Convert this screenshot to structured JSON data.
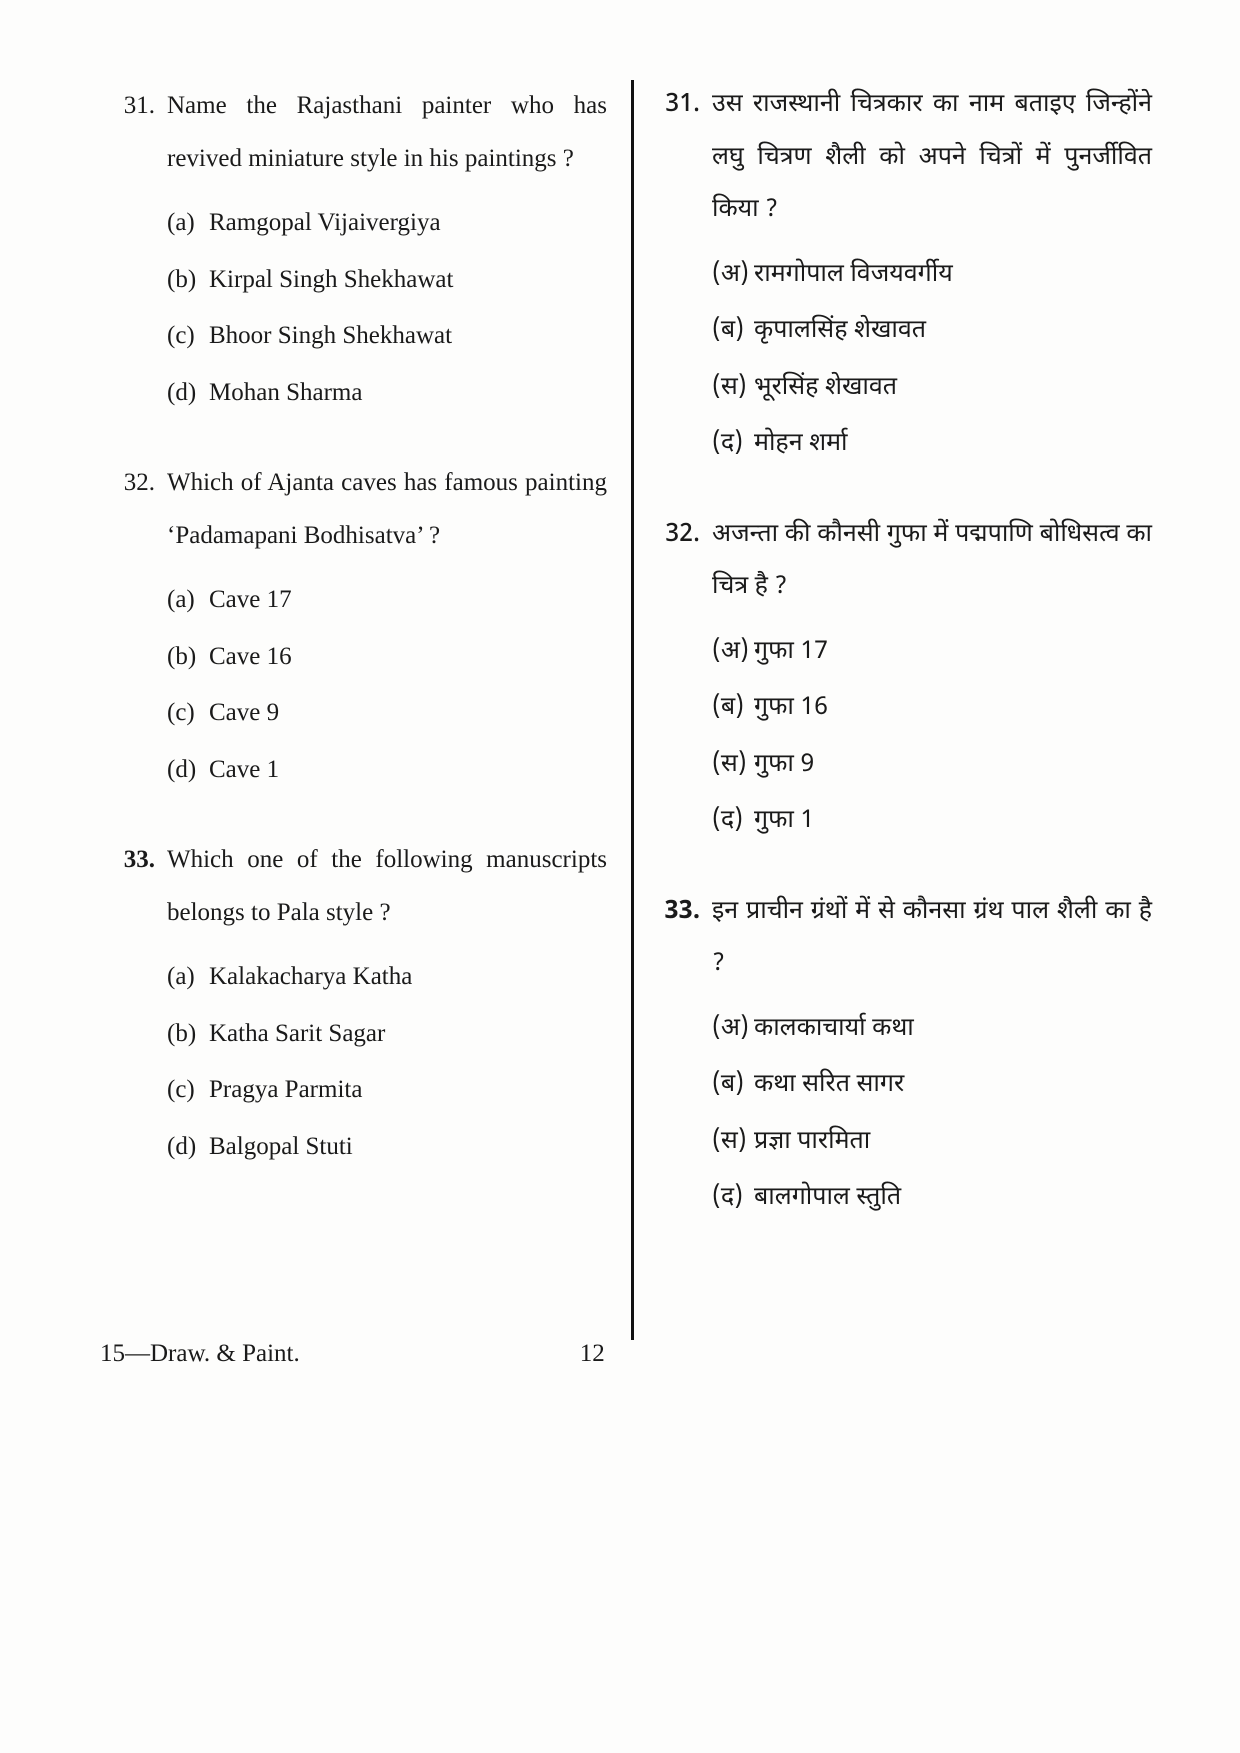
{
  "left": {
    "q31": {
      "num": "31.",
      "text": "Name the Rajasthani painter who has revived miniature style in his paintings ?",
      "opts": [
        {
          "l": "(a)",
          "t": "Ramgopal Vijaivergiya"
        },
        {
          "l": "(b)",
          "t": "Kirpal Singh Shekhawat"
        },
        {
          "l": "(c)",
          "t": "Bhoor Singh Shekhawat"
        },
        {
          "l": "(d)",
          "t": "Mohan Sharma"
        }
      ]
    },
    "q32": {
      "num": "32.",
      "text": "Which of Ajanta caves has famous painting ‘Padamapani Bodhisatva’ ?",
      "opts": [
        {
          "l": "(a)",
          "t": "Cave 17"
        },
        {
          "l": "(b)",
          "t": "Cave 16"
        },
        {
          "l": "(c)",
          "t": "Cave 9"
        },
        {
          "l": "(d)",
          "t": "Cave 1"
        }
      ]
    },
    "q33": {
      "num": "33.",
      "text": "Which one of the following manuscripts belongs to Pala style ?",
      "opts": [
        {
          "l": "(a)",
          "t": "Kalakacharya Katha"
        },
        {
          "l": "(b)",
          "t": "Katha Sarit Sagar"
        },
        {
          "l": "(c)",
          "t": "Pragya Parmita"
        },
        {
          "l": "(d)",
          "t": "Balgopal Stuti"
        }
      ]
    }
  },
  "right": {
    "q31": {
      "num": "31.",
      "text": "उस राजस्थानी चित्रकार का नाम बताइए जिन्होंने लघु चित्रण शैली को अपने चित्रों में पुनर्जीवित किया ?",
      "opts": [
        {
          "l": "(अ)",
          "t": "रामगोपाल विजयवर्गीय"
        },
        {
          "l": "(ब)",
          "t": "कृपालसिंह शेखावत"
        },
        {
          "l": "(स)",
          "t": "भूरसिंह शेखावत"
        },
        {
          "l": "(द)",
          "t": "मोहन शर्मा"
        }
      ]
    },
    "q32": {
      "num": "32.",
      "text": "अजन्ता की कौनसी गुफा में पद्मपाणि बोधिसत्व का चित्र है ?",
      "opts": [
        {
          "l": "(अ)",
          "t": "गुफा 17"
        },
        {
          "l": "(ब)",
          "t": "गुफा 16"
        },
        {
          "l": "(स)",
          "t": "गुफा 9"
        },
        {
          "l": "(द)",
          "t": "गुफा 1"
        }
      ]
    },
    "q33": {
      "num": "33.",
      "text": "इन प्राचीन ग्रंथों में से कौनसा ग्रंथ पाल शैली का है ?",
      "opts": [
        {
          "l": "(अ)",
          "t": "कालकाचार्या कथा"
        },
        {
          "l": "(ब)",
          "t": "कथा सरित सागर"
        },
        {
          "l": "(स)",
          "t": "प्रज्ञा पारमिता"
        },
        {
          "l": "(द)",
          "t": "बालगोपाल स्तुति"
        }
      ]
    }
  },
  "footer": {
    "left": "15—Draw. & Paint.",
    "page": "12"
  }
}
